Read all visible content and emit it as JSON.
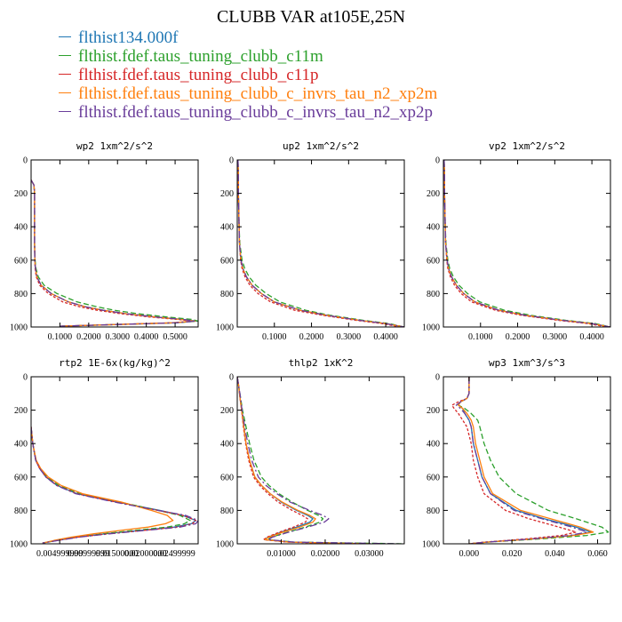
{
  "title": "CLUBB VAR at105E,25N",
  "legend": [
    {
      "name": "flthist134.000f",
      "color": "#1f77b4"
    },
    {
      "name": "flthist.fdef.taus_tuning_clubb_c11m",
      "color": "#2ca02c"
    },
    {
      "name": "flthist.fdef.taus_tuning_clubb_c11p",
      "color": "#d62728"
    },
    {
      "name": "flthist.fdef.taus_tuning_clubb_c_invrs_tau_n2_xp2m",
      "color": "#ff7f0e"
    },
    {
      "name": "flthist.fdef.taus_tuning_clubb_c_invrs_tau_n2_xp2p",
      "color": "#6a3d9a"
    }
  ],
  "chart_data": [
    {
      "type": "line",
      "title": "wp2  1xm^2/s^2",
      "xlim": [
        0,
        0.58
      ],
      "ylim": [
        1000,
        0
      ],
      "xticks": [
        {
          "v": 0.1,
          "label": "0.1000"
        },
        {
          "v": 0.2,
          "label": "0.2000"
        },
        {
          "v": 0.3,
          "label": "0.3000"
        },
        {
          "v": 0.4,
          "label": "0.4000"
        },
        {
          "v": 0.5,
          "label": "0.5000"
        }
      ],
      "yticks": [
        0,
        200,
        400,
        600,
        800,
        1000
      ],
      "y": [
        120,
        150,
        200,
        300,
        400,
        500,
        600,
        650,
        700,
        750,
        800,
        850,
        880,
        900,
        920,
        940,
        955,
        965,
        975,
        985,
        995
      ],
      "series": [
        {
          "values": [
            0,
            0.01,
            0.012,
            0.012,
            0.012,
            0.012,
            0.013,
            0.015,
            0.02,
            0.035,
            0.07,
            0.13,
            0.19,
            0.25,
            0.33,
            0.43,
            0.53,
            0.575,
            0.5,
            0.3,
            0.1
          ]
        },
        {
          "values": [
            0,
            0.01,
            0.012,
            0.012,
            0.012,
            0.012,
            0.014,
            0.017,
            0.025,
            0.045,
            0.09,
            0.16,
            0.23,
            0.29,
            0.37,
            0.47,
            0.56,
            0.58,
            0.5,
            0.3,
            0.1
          ]
        },
        {
          "values": [
            0,
            0.01,
            0.012,
            0.012,
            0.012,
            0.012,
            0.013,
            0.014,
            0.018,
            0.03,
            0.06,
            0.11,
            0.17,
            0.23,
            0.31,
            0.41,
            0.51,
            0.56,
            0.49,
            0.29,
            0.1
          ]
        },
        {
          "values": [
            0,
            0.01,
            0.012,
            0.012,
            0.012,
            0.012,
            0.013,
            0.015,
            0.02,
            0.035,
            0.07,
            0.13,
            0.19,
            0.25,
            0.33,
            0.43,
            0.52,
            0.57,
            0.49,
            0.3,
            0.1
          ]
        },
        {
          "values": [
            0,
            0.01,
            0.012,
            0.012,
            0.012,
            0.012,
            0.013,
            0.015,
            0.02,
            0.035,
            0.07,
            0.13,
            0.19,
            0.25,
            0.33,
            0.43,
            0.525,
            0.57,
            0.5,
            0.3,
            0.1
          ]
        }
      ]
    },
    {
      "type": "line",
      "title": "up2  1xm^2/s^2",
      "xlim": [
        0,
        0.45
      ],
      "ylim": [
        1000,
        0
      ],
      "xticks": [
        {
          "v": 0.1,
          "label": "0.1000"
        },
        {
          "v": 0.2,
          "label": "0.2000"
        },
        {
          "v": 0.3,
          "label": "0.3000"
        },
        {
          "v": 0.4,
          "label": "0.4000"
        }
      ],
      "yticks": [
        0,
        200,
        400,
        600,
        800,
        1000
      ],
      "y": [
        0,
        100,
        200,
        300,
        400,
        500,
        600,
        650,
        700,
        750,
        800,
        850,
        900,
        930,
        960,
        980,
        1000
      ],
      "series": [
        {
          "values": [
            0.002,
            0.003,
            0.003,
            0.004,
            0.005,
            0.006,
            0.01,
            0.015,
            0.025,
            0.04,
            0.065,
            0.1,
            0.17,
            0.24,
            0.33,
            0.4,
            0.45
          ]
        },
        {
          "values": [
            0.002,
            0.003,
            0.003,
            0.004,
            0.005,
            0.007,
            0.013,
            0.02,
            0.032,
            0.05,
            0.078,
            0.115,
            0.185,
            0.25,
            0.34,
            0.41,
            0.45
          ]
        },
        {
          "values": [
            0.002,
            0.003,
            0.003,
            0.004,
            0.005,
            0.006,
            0.009,
            0.013,
            0.021,
            0.034,
            0.056,
            0.09,
            0.155,
            0.23,
            0.32,
            0.39,
            0.44
          ]
        },
        {
          "values": [
            0.002,
            0.003,
            0.003,
            0.004,
            0.005,
            0.006,
            0.01,
            0.015,
            0.025,
            0.04,
            0.065,
            0.1,
            0.17,
            0.24,
            0.33,
            0.4,
            0.45
          ]
        },
        {
          "values": [
            0.002,
            0.003,
            0.003,
            0.004,
            0.005,
            0.006,
            0.01,
            0.015,
            0.025,
            0.04,
            0.065,
            0.1,
            0.17,
            0.24,
            0.33,
            0.4,
            0.45
          ]
        }
      ]
    },
    {
      "type": "line",
      "title": "vp2  1xm^2/s^2",
      "xlim": [
        0,
        0.45
      ],
      "ylim": [
        1000,
        0
      ],
      "xticks": [
        {
          "v": 0.1,
          "label": "0.1000"
        },
        {
          "v": 0.2,
          "label": "0.2000"
        },
        {
          "v": 0.3,
          "label": "0.3000"
        },
        {
          "v": 0.4,
          "label": "0.4000"
        }
      ],
      "yticks": [
        0,
        200,
        400,
        600,
        800,
        1000
      ],
      "y": [
        0,
        100,
        200,
        300,
        400,
        500,
        600,
        650,
        700,
        750,
        800,
        850,
        900,
        930,
        960,
        980,
        1000
      ],
      "series": [
        {
          "values": [
            0.002,
            0.003,
            0.003,
            0.004,
            0.005,
            0.006,
            0.01,
            0.014,
            0.022,
            0.035,
            0.055,
            0.085,
            0.15,
            0.22,
            0.32,
            0.4,
            0.45
          ]
        },
        {
          "values": [
            0.002,
            0.003,
            0.003,
            0.004,
            0.005,
            0.007,
            0.012,
            0.017,
            0.027,
            0.042,
            0.065,
            0.098,
            0.165,
            0.235,
            0.33,
            0.41,
            0.45
          ]
        },
        {
          "values": [
            0.002,
            0.003,
            0.003,
            0.004,
            0.005,
            0.006,
            0.009,
            0.012,
            0.019,
            0.03,
            0.048,
            0.076,
            0.14,
            0.21,
            0.31,
            0.39,
            0.44
          ]
        },
        {
          "values": [
            0.002,
            0.003,
            0.003,
            0.004,
            0.005,
            0.006,
            0.01,
            0.014,
            0.022,
            0.035,
            0.055,
            0.085,
            0.15,
            0.22,
            0.32,
            0.4,
            0.45
          ]
        },
        {
          "values": [
            0.002,
            0.003,
            0.003,
            0.004,
            0.005,
            0.006,
            0.01,
            0.014,
            0.022,
            0.035,
            0.055,
            0.085,
            0.15,
            0.22,
            0.32,
            0.4,
            0.45
          ]
        }
      ]
    },
    {
      "type": "line",
      "title": "rtp2  1E-6x(kg/kg)^2",
      "xlim": [
        0,
        0.0292
      ],
      "ylim": [
        1000,
        0
      ],
      "xticks": [
        {
          "v": 0.005,
          "label": "0.004999999"
        },
        {
          "v": 0.01,
          "label": "0.00999999"
        },
        {
          "v": 0.015,
          "label": "0.01500000"
        },
        {
          "v": 0.02,
          "label": "0.02000000"
        },
        {
          "v": 0.025,
          "label": "0.02499999"
        }
      ],
      "yticks": [
        0,
        200,
        400,
        600,
        800,
        1000
      ],
      "y": [
        300,
        400,
        500,
        550,
        600,
        650,
        700,
        750,
        800,
        830,
        860,
        880,
        900,
        920,
        940,
        960,
        980,
        995
      ],
      "series": [
        {
          "values": [
            0,
            0.0003,
            0.0008,
            0.0015,
            0.0026,
            0.0045,
            0.008,
            0.015,
            0.0225,
            0.0265,
            0.0288,
            0.028,
            0.025,
            0.019,
            0.013,
            0.008,
            0.0045,
            0.002
          ]
        },
        {
          "values": [
            0,
            0.0003,
            0.0008,
            0.0016,
            0.0028,
            0.0048,
            0.0085,
            0.0155,
            0.0222,
            0.026,
            0.0278,
            0.0268,
            0.0238,
            0.018,
            0.0125,
            0.0078,
            0.0044,
            0.002
          ]
        },
        {
          "values": [
            0,
            0.0003,
            0.0008,
            0.0015,
            0.0026,
            0.0045,
            0.008,
            0.0148,
            0.0222,
            0.0265,
            0.0288,
            0.0282,
            0.0255,
            0.0195,
            0.0135,
            0.0082,
            0.0046,
            0.002
          ]
        },
        {
          "values": [
            0,
            0.0003,
            0.0009,
            0.0017,
            0.003,
            0.0052,
            0.009,
            0.0158,
            0.021,
            0.0238,
            0.0248,
            0.0235,
            0.0205,
            0.0155,
            0.011,
            0.007,
            0.004,
            0.002
          ]
        },
        {
          "values": [
            0,
            0.0003,
            0.0008,
            0.0015,
            0.0026,
            0.0044,
            0.0078,
            0.0145,
            0.0222,
            0.027,
            0.0292,
            0.0288,
            0.026,
            0.0198,
            0.0138,
            0.0084,
            0.0047,
            0.002
          ]
        }
      ]
    },
    {
      "type": "line",
      "title": "thlp2  1xK^2",
      "xlim": [
        0,
        0.038
      ],
      "ylim": [
        1000,
        0
      ],
      "xticks": [
        {
          "v": 0.01,
          "label": "0.01000"
        },
        {
          "v": 0.02,
          "label": "0.02000"
        },
        {
          "v": 0.03,
          "label": "0.03000"
        }
      ],
      "yticks": [
        0,
        200,
        400,
        600,
        800,
        1000
      ],
      "y": [
        0,
        50,
        100,
        200,
        300,
        400,
        500,
        600,
        650,
        700,
        750,
        800,
        830,
        850,
        870,
        900,
        930,
        960,
        975,
        990,
        1000
      ],
      "series": [
        {
          "values": [
            0,
            0.0003,
            0.0005,
            0.001,
            0.0015,
            0.002,
            0.0028,
            0.004,
            0.0055,
            0.0075,
            0.01,
            0.0135,
            0.016,
            0.0172,
            0.0165,
            0.0135,
            0.01,
            0.007,
            0.0062,
            0.012,
            0.03
          ]
        },
        {
          "values": [
            0,
            0.0003,
            0.0006,
            0.0012,
            0.002,
            0.0028,
            0.0038,
            0.0055,
            0.0072,
            0.0095,
            0.0125,
            0.016,
            0.0185,
            0.0195,
            0.0188,
            0.0155,
            0.0115,
            0.0078,
            0.0068,
            0.013,
            0.038
          ]
        },
        {
          "values": [
            0,
            0.0003,
            0.0005,
            0.001,
            0.0014,
            0.0019,
            0.0026,
            0.0037,
            0.0051,
            0.007,
            0.0093,
            0.0125,
            0.0148,
            0.016,
            0.0155,
            0.0128,
            0.0096,
            0.0068,
            0.006,
            0.0115,
            0.026
          ]
        },
        {
          "values": [
            0,
            0.0003,
            0.0005,
            0.001,
            0.0015,
            0.002,
            0.0028,
            0.004,
            0.0055,
            0.0075,
            0.0102,
            0.0138,
            0.0165,
            0.0178,
            0.0172,
            0.0142,
            0.0105,
            0.0072,
            0.0063,
            0.012,
            0.03
          ]
        },
        {
          "values": [
            0,
            0.0003,
            0.0006,
            0.0011,
            0.0017,
            0.0024,
            0.0033,
            0.0048,
            0.0065,
            0.009,
            0.012,
            0.0165,
            0.0195,
            0.0208,
            0.0198,
            0.016,
            0.0118,
            0.008,
            0.007,
            0.013,
            0.037
          ]
        }
      ]
    },
    {
      "type": "line",
      "title": "wp3  1xm^3/s^3",
      "xlim": [
        -0.012,
        0.066
      ],
      "ylim": [
        1000,
        0
      ],
      "xticks": [
        {
          "v": 0,
          "label": "0.000"
        },
        {
          "v": 0.02,
          "label": "0.020"
        },
        {
          "v": 0.04,
          "label": "0.040"
        },
        {
          "v": 0.06,
          "label": "0.060"
        }
      ],
      "yticks": [
        0,
        200,
        400,
        600,
        800,
        1000
      ],
      "y": [
        0,
        100,
        130,
        150,
        170,
        190,
        220,
        260,
        300,
        400,
        500,
        600,
        700,
        800,
        850,
        900,
        930,
        950,
        970,
        990,
        1000
      ],
      "series": [
        {
          "values": [
            0,
            0,
            -0.001,
            -0.004,
            -0.005,
            -0.003,
            -0.002,
            0,
            0.001,
            0.002,
            0.004,
            0.006,
            0.01,
            0.022,
            0.035,
            0.05,
            0.057,
            0.048,
            0.03,
            0.008,
            0
          ]
        },
        {
          "values": [
            0,
            0,
            -0.001,
            -0.004,
            -0.005,
            -0.002,
            0.001,
            0.004,
            0.005,
            0.007,
            0.01,
            0.014,
            0.022,
            0.037,
            0.05,
            0.062,
            0.065,
            0.055,
            0.034,
            0.009,
            0
          ]
        },
        {
          "values": [
            0,
            0,
            -0.001,
            -0.005,
            -0.008,
            -0.007,
            -0.005,
            -0.003,
            -0.001,
            0.001,
            0.002,
            0.004,
            0.007,
            0.017,
            0.028,
            0.042,
            0.05,
            0.043,
            0.027,
            0.007,
            0
          ]
        },
        {
          "values": [
            0,
            0,
            -0.001,
            -0.004,
            -0.005,
            -0.003,
            -0.001,
            0.001,
            0.002,
            0.003,
            0.005,
            0.007,
            0.011,
            0.024,
            0.038,
            0.052,
            0.058,
            0.049,
            0.031,
            0.008,
            0
          ]
        },
        {
          "values": [
            0,
            0,
            -0.001,
            -0.004,
            -0.006,
            -0.004,
            -0.002,
            0,
            0.001,
            0.002,
            0.004,
            0.006,
            0.01,
            0.021,
            0.034,
            0.048,
            0.055,
            0.047,
            0.03,
            0.008,
            0
          ]
        }
      ]
    }
  ]
}
